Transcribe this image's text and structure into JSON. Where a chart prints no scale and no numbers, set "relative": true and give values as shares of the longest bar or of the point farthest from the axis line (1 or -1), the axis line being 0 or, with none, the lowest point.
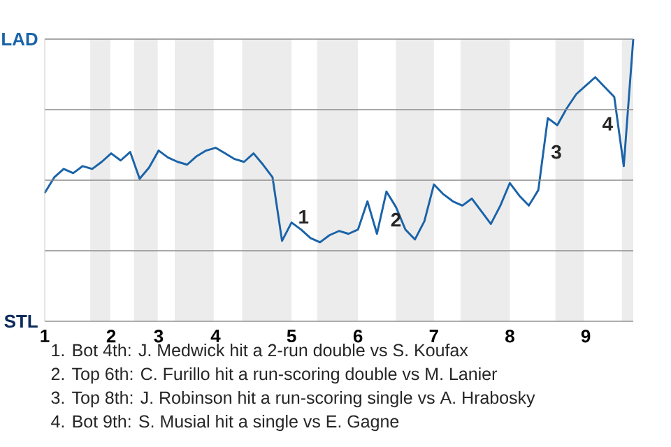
{
  "chart_data": {
    "type": "line",
    "relative": true,
    "categories": [
      "1",
      null,
      null,
      null,
      null,
      null,
      null,
      "2",
      null,
      null,
      null,
      null,
      "3",
      null,
      null,
      null,
      null,
      null,
      "4",
      null,
      null,
      null,
      null,
      null,
      null,
      null,
      "5",
      null,
      null,
      null,
      null,
      null,
      null,
      "6",
      null,
      null,
      null,
      null,
      null,
      null,
      null,
      "7",
      null,
      null,
      null,
      null,
      null,
      null,
      null,
      "8",
      null,
      null,
      null,
      null,
      null,
      null,
      null,
      "9",
      null,
      null,
      null,
      null,
      null
    ],
    "series": [
      {
        "color": "#1a63a8",
        "values": [
          0.455,
          0.51,
          0.54,
          0.525,
          0.55,
          0.54,
          0.565,
          0.595,
          0.57,
          0.6,
          0.505,
          0.545,
          0.605,
          0.58,
          0.565,
          0.555,
          0.585,
          0.605,
          0.615,
          0.595,
          0.575,
          0.565,
          0.595,
          0.555,
          0.51,
          0.285,
          0.35,
          0.325,
          0.295,
          0.28,
          0.305,
          0.32,
          0.31,
          0.325,
          0.425,
          0.31,
          0.46,
          0.405,
          0.325,
          0.29,
          0.355,
          0.485,
          0.45,
          0.425,
          0.41,
          0.435,
          0.39,
          0.345,
          0.41,
          0.49,
          0.445,
          0.41,
          0.465,
          0.72,
          0.695,
          0.755,
          0.805,
          0.835,
          0.865,
          0.83,
          0.795,
          0.55,
          1
        ]
      }
    ],
    "grid": "y",
    "marker": "none",
    "line_style": "solid",
    "annotations": [
      "LAD",
      "STL",
      {
        "text": "1",
        "x": "5",
        "y": 0.37
      },
      {
        "text": "2",
        "y": 0.36
      },
      "3",
      "4",
      "1. Bot 4th: J. Medwick hit a 2-run double vs S. Koufax",
      "2. Top 6th: C. Furillo hit a run-scoring double vs M. Lanier",
      "3. Top 8th: J. Robinson hit a run-scoring single vs A. Hrabosky",
      "4. Bot 9th: S. Musial hit a single vs E. Gagne"
    ]
  }
}
